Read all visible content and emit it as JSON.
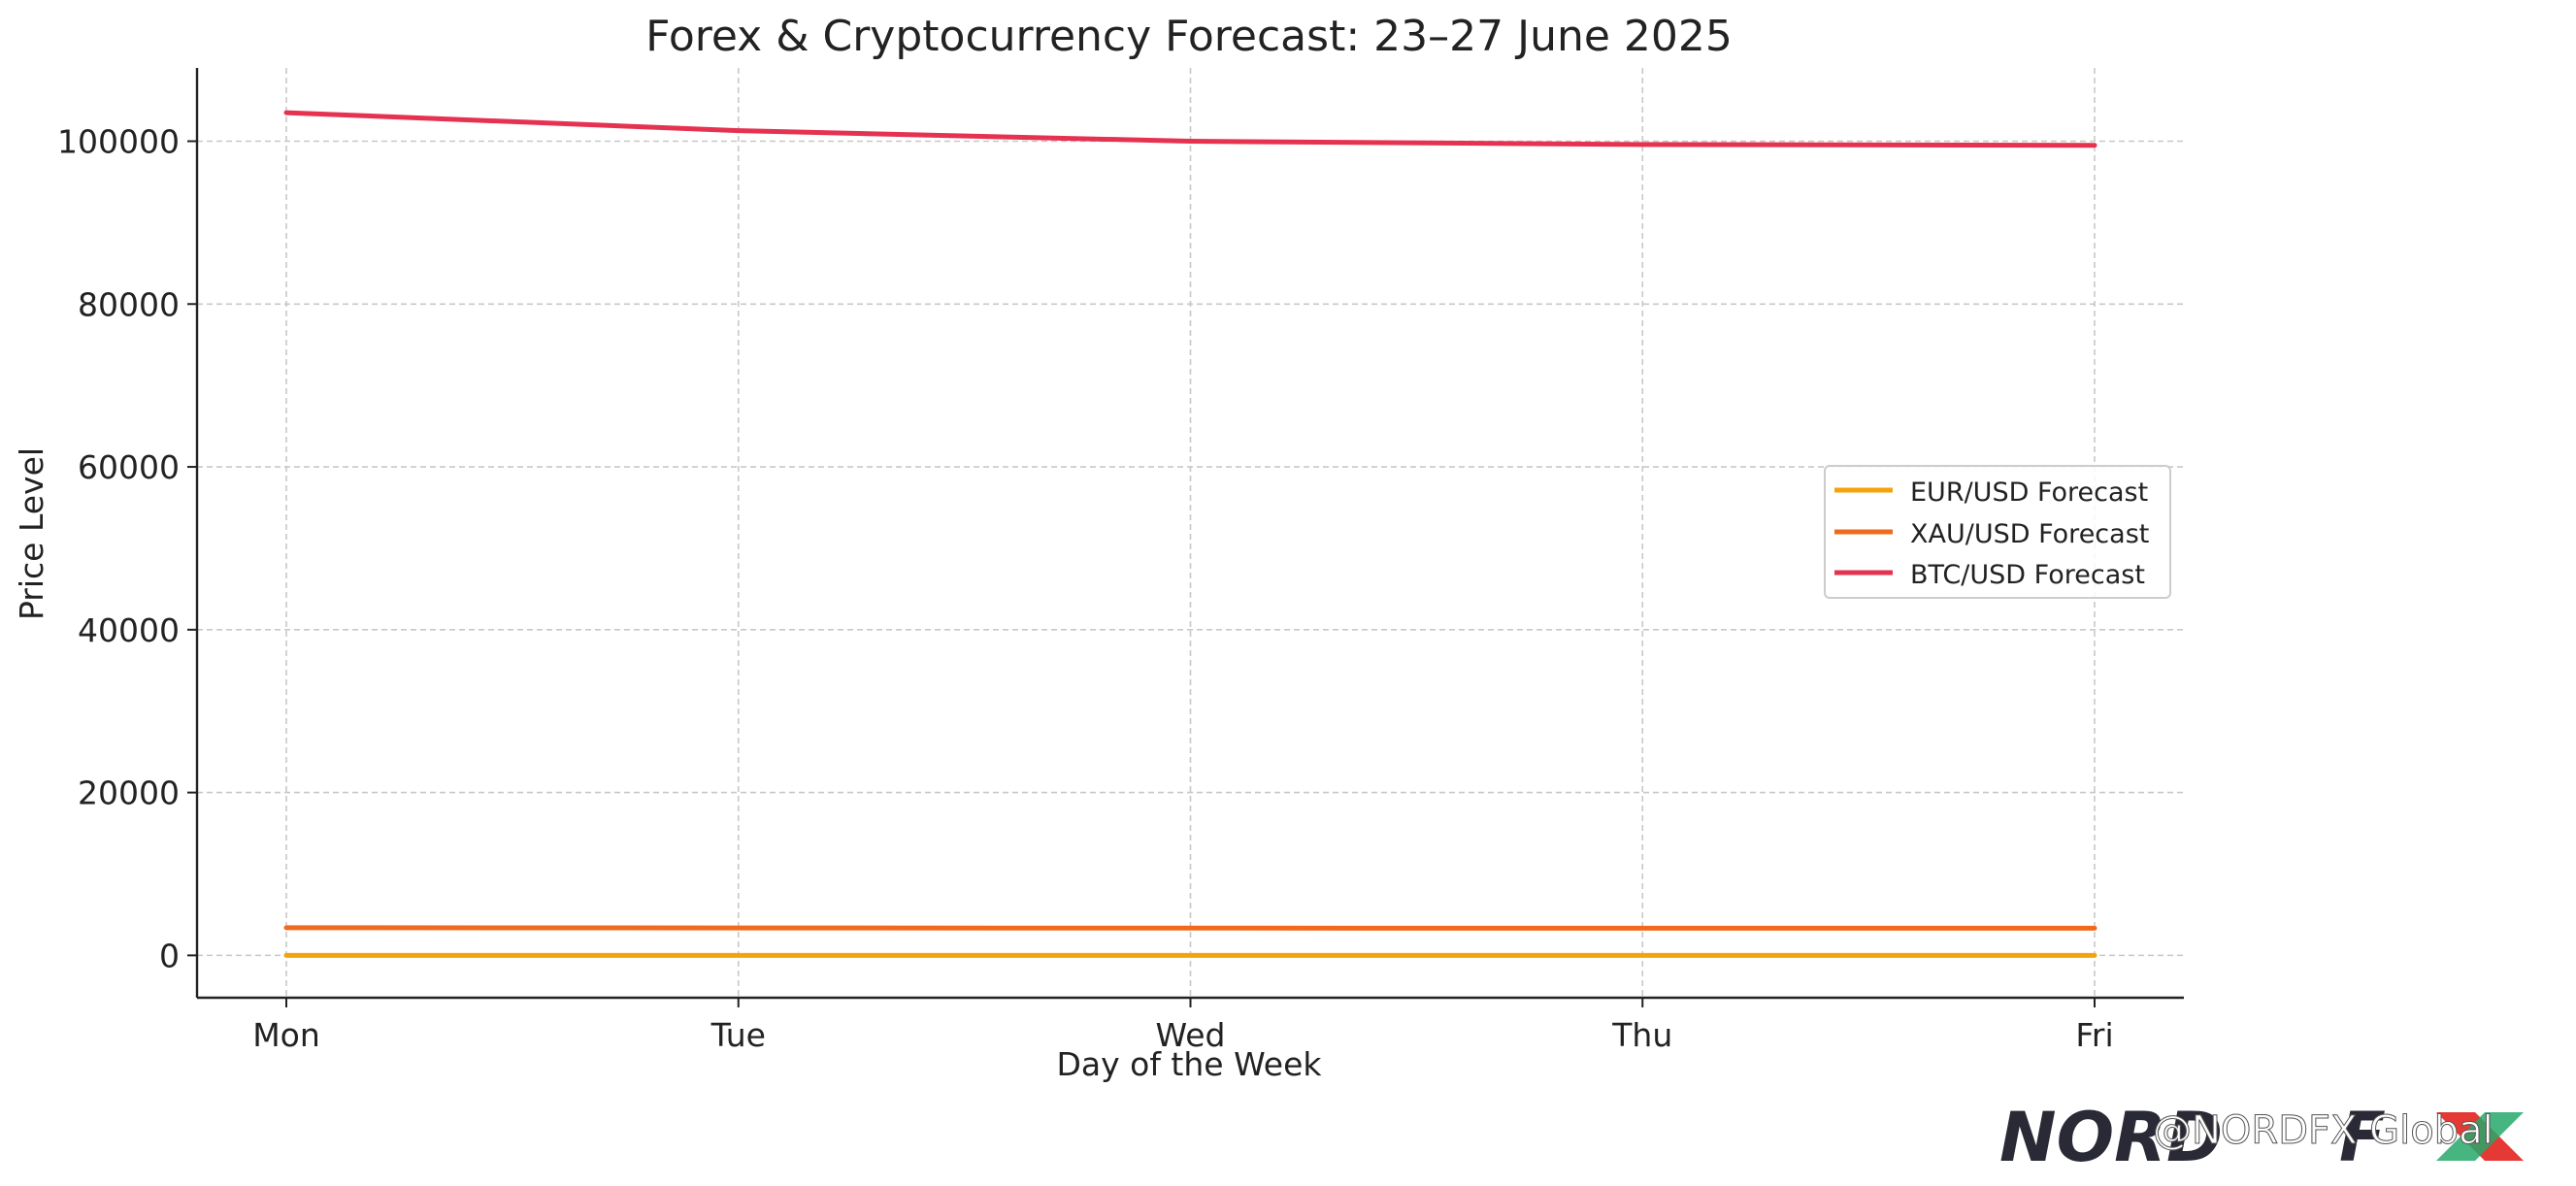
{
  "chart_data": {
    "type": "line",
    "title": "Forex & Cryptocurrency Forecast: 23–27 June 2025",
    "xlabel": "Day of the Week",
    "ylabel": "Price Level",
    "categories": [
      "Mon",
      "Tue",
      "Wed",
      "Thu",
      "Fri"
    ],
    "series": [
      {
        "name": "EUR/USD Forecast",
        "color": "#f5a30a",
        "values": [
          1.145,
          1.14,
          1.135,
          1.13,
          1.125
        ]
      },
      {
        "name": "XAU/USD Forecast",
        "color": "#ef6a1f",
        "values": [
          3390,
          3370,
          3350,
          3340,
          3330
        ]
      },
      {
        "name": "BTC/USD Forecast",
        "color": "#e63251",
        "values": [
          103500,
          101300,
          100000,
          99600,
          99500
        ]
      }
    ],
    "ylim": [
      -5200,
      109000
    ],
    "yticks": [
      0,
      20000,
      40000,
      60000,
      80000,
      100000
    ],
    "grid": true,
    "legend_position": "center-right"
  },
  "watermark": {
    "logo_text": "NORDFX",
    "handle": "@NORDFX Global"
  }
}
